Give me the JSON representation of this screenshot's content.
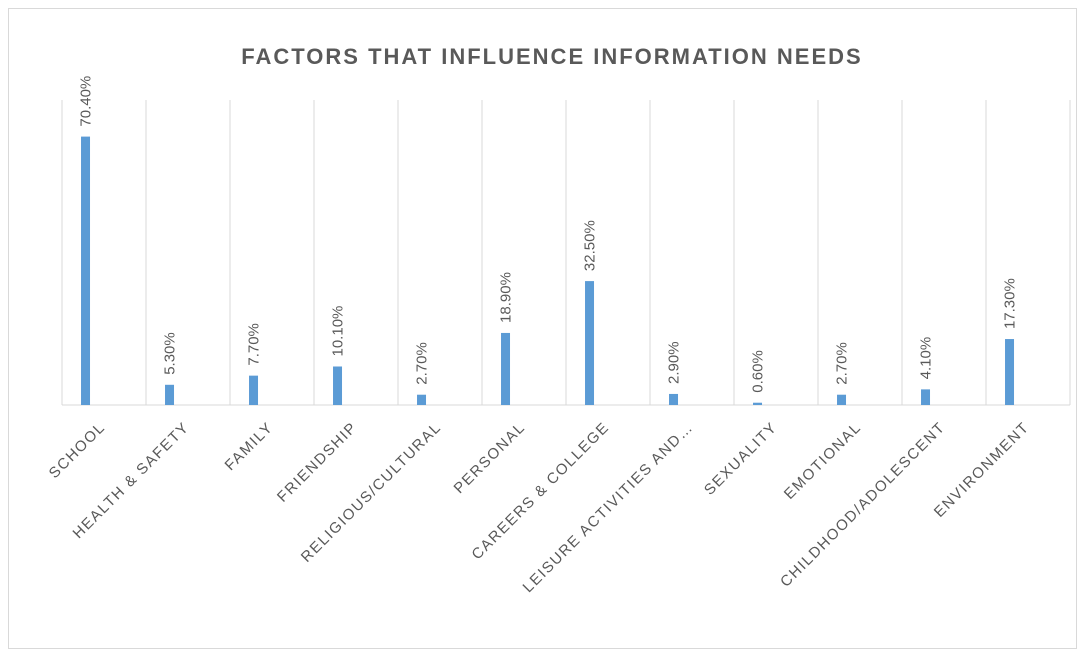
{
  "chart_data": {
    "type": "bar",
    "title": "FACTORS THAT INFLUENCE INFORMATION NEEDS",
    "categories": [
      "SCHOOL",
      "HEALTH & SAFETY",
      "FAMILY",
      "FRIENDSHIP",
      "RELIGIOUS/CULTURAL",
      "PERSONAL",
      "CAREERS & COLLEGE",
      "LEISURE ACTIVITIES AND…",
      "SEXUALITY",
      "EMOTIONAL",
      "CHILDHOOD/ADOLESCENT",
      "ENVIRONMENT"
    ],
    "values": [
      70.4,
      5.3,
      7.7,
      10.1,
      2.7,
      18.9,
      32.5,
      2.9,
      0.6,
      2.7,
      4.1,
      17.3
    ],
    "value_labels": [
      "70.40%",
      "5.30%",
      "7.70%",
      "10.10%",
      "2.70%",
      "18.90%",
      "32.50%",
      "2.90%",
      "0.60%",
      "2.70%",
      "4.10%",
      "17.30%"
    ],
    "color": "#5b9bd5",
    "ylim": [
      0,
      80
    ],
    "grid": true
  }
}
